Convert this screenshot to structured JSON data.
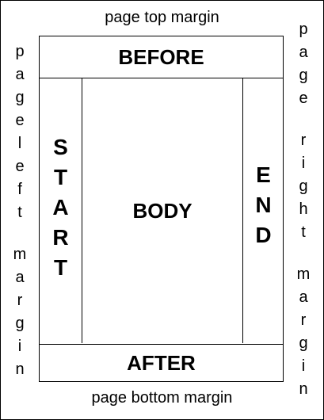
{
  "margins": {
    "top": "page top margin",
    "bottom": "page bottom margin",
    "left": [
      "p",
      "a",
      "g",
      "e",
      "l",
      "e",
      "f",
      "t",
      "",
      "m",
      "a",
      "r",
      "g",
      "i",
      "n"
    ],
    "right": [
      "p",
      "a",
      "g",
      "e",
      "",
      "r",
      "i",
      "g",
      "h",
      "t",
      "",
      "m",
      "a",
      "r",
      "g",
      "i",
      "n"
    ]
  },
  "regions": {
    "before": "BEFORE",
    "after": "AFTER",
    "body": "BODY",
    "start": [
      "S",
      "T",
      "A",
      "R",
      "T"
    ],
    "end": [
      "E",
      "N",
      "D"
    ]
  }
}
